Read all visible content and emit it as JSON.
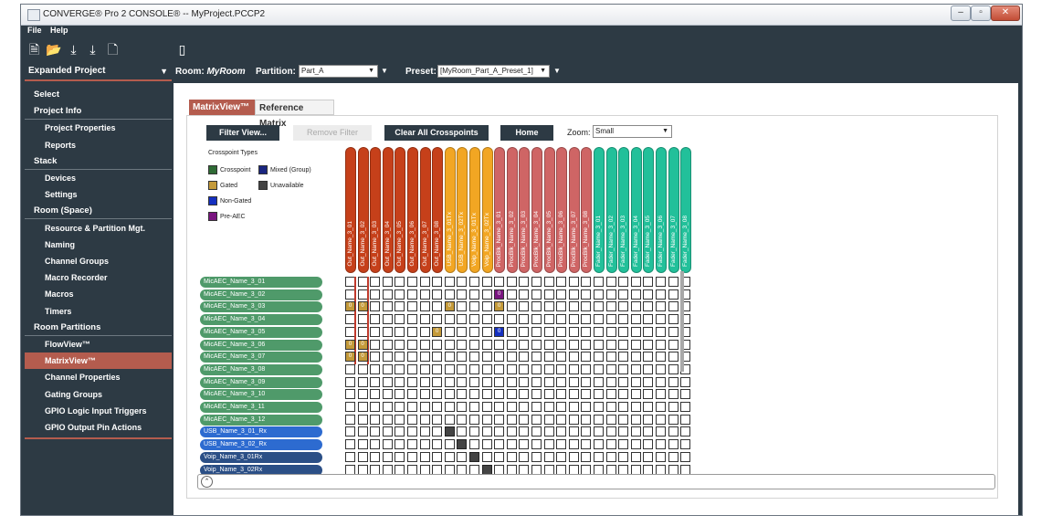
{
  "window": {
    "title": "CONVERGE® Pro 2 CONSOLE®  -- MyProject.PCCP2"
  },
  "menu": [
    "File",
    "Help"
  ],
  "expanded_project_label": "Expanded Project",
  "room": {
    "label": "Room:",
    "value": "MyRoom"
  },
  "partition": {
    "label": "Partition:",
    "value": "Part_A"
  },
  "preset": {
    "label": "Preset:",
    "value": "[MyRoom_Part_A_Preset_1]"
  },
  "sidebar": [
    {
      "label": "Select",
      "level": 1
    },
    {
      "label": "Project Info",
      "level": 1,
      "head": true
    },
    {
      "label": "Project Properties",
      "level": 2
    },
    {
      "label": "Reports",
      "level": 2
    },
    {
      "label": "Stack",
      "level": 1,
      "head": true
    },
    {
      "label": "Devices",
      "level": 2
    },
    {
      "label": "Settings",
      "level": 2
    },
    {
      "label": "Room (Space)",
      "level": 1,
      "head": true
    },
    {
      "label": "Resource & Partition Mgt.",
      "level": 2
    },
    {
      "label": "Naming",
      "level": 2
    },
    {
      "label": "Channel Groups",
      "level": 2
    },
    {
      "label": "Macro Recorder",
      "level": 2
    },
    {
      "label": "Macros",
      "level": 2
    },
    {
      "label": "Timers",
      "level": 2
    },
    {
      "label": "Room Partitions",
      "level": 1,
      "head": true
    },
    {
      "label": "FlowView™",
      "level": 2
    },
    {
      "label": "MatrixView™",
      "level": 2,
      "selected": true
    },
    {
      "label": "Channel Properties",
      "level": 2
    },
    {
      "label": "Gating Groups",
      "level": 2
    },
    {
      "label": "GPIO Logic Input Triggers",
      "level": 2
    },
    {
      "label": "GPIO Output Pin Actions",
      "level": 2
    }
  ],
  "tabs": [
    {
      "label": "MatrixView™"
    },
    {
      "label": "Reference Matrix"
    }
  ],
  "buttons": {
    "filter": "Filter View...",
    "remove_filter": "Remove Filter",
    "clear": "Clear All Crosspoints",
    "home": "Home"
  },
  "zoom": {
    "label": "Zoom:",
    "value": "Small"
  },
  "legend": {
    "title": "Crosspoint Types",
    "items": [
      {
        "label": "Crosspoint",
        "color": "#2f6b35"
      },
      {
        "label": "Mixed (Group)",
        "color": "#1a2680"
      },
      {
        "label": "Gated",
        "color": "#c49a3a"
      },
      {
        "label": "Unavailable",
        "color": "#444444"
      },
      {
        "label": "Non-Gated",
        "color": "#1530c0"
      },
      {
        "label": "Pre-AEC",
        "color": "#7a1580"
      }
    ]
  },
  "gate_glyph": "0",
  "columns": [
    {
      "label": "Out_Name_3_01",
      "color": "#c6401a"
    },
    {
      "label": "Out_Name_3_02",
      "color": "#c6401a"
    },
    {
      "label": "Out_Name_3_03",
      "color": "#c6401a"
    },
    {
      "label": "Out_Name_3_04",
      "color": "#c6401a"
    },
    {
      "label": "Out_Name_3_05",
      "color": "#c6401a"
    },
    {
      "label": "Out_Name_3_06",
      "color": "#c6401a"
    },
    {
      "label": "Out_Name_3_07",
      "color": "#c6401a"
    },
    {
      "label": "Out_Name_3_08",
      "color": "#c6401a"
    },
    {
      "label": "USB_Name_3_01Tx",
      "color": "#f2a623"
    },
    {
      "label": "USB_Name_3_02Tx",
      "color": "#f2a623"
    },
    {
      "label": "Voip_Name_3_01Tx",
      "color": "#f2a623"
    },
    {
      "label": "Voip_Name_3_02Tx",
      "color": "#f2a623"
    },
    {
      "label": "ProcBlk_Name_3_01",
      "color": "#cf6565"
    },
    {
      "label": "ProcBlk_Name_3_02",
      "color": "#cf6565"
    },
    {
      "label": "ProcBlk_Name_3_03",
      "color": "#cf6565"
    },
    {
      "label": "ProcBlk_Name_3_04",
      "color": "#cf6565"
    },
    {
      "label": "ProcBlk_Name_3_05",
      "color": "#cf6565"
    },
    {
      "label": "ProcBlk_Name_3_06",
      "color": "#cf6565"
    },
    {
      "label": "ProcBlk_Name_3_07",
      "color": "#cf6565"
    },
    {
      "label": "ProcBlk_Name_3_08",
      "color": "#cf6565"
    },
    {
      "label": "Fader_Name_3_01",
      "color": "#22c09a"
    },
    {
      "label": "Fader_Name_3_02",
      "color": "#22c09a"
    },
    {
      "label": "Fader_Name_3_03",
      "color": "#22c09a"
    },
    {
      "label": "Fader_Name_3_04",
      "color": "#22c09a"
    },
    {
      "label": "Fader_Name_3_05",
      "color": "#22c09a"
    },
    {
      "label": "Fader_Name_3_06",
      "color": "#22c09a"
    },
    {
      "label": "Fader_Name_3_07",
      "color": "#22c09a"
    },
    {
      "label": "Fader_Name_3_08",
      "color": "#22c09a"
    }
  ],
  "rows": [
    {
      "label": "MicAEC_Name_3_01",
      "color": "#4f9a6a"
    },
    {
      "label": "MicAEC_Name_3_02",
      "color": "#4f9a6a"
    },
    {
      "label": "MicAEC_Name_3_03",
      "color": "#4f9a6a"
    },
    {
      "label": "MicAEC_Name_3_04",
      "color": "#4f9a6a"
    },
    {
      "label": "MicAEC_Name_3_05",
      "color": "#4f9a6a"
    },
    {
      "label": "MicAEC_Name_3_06",
      "color": "#4f9a6a"
    },
    {
      "label": "MicAEC_Name_3_07",
      "color": "#4f9a6a"
    },
    {
      "label": "MicAEC_Name_3_08",
      "color": "#4f9a6a"
    },
    {
      "label": "MicAEC_Name_3_09",
      "color": "#4f9a6a"
    },
    {
      "label": "MicAEC_Name_3_10",
      "color": "#4f9a6a"
    },
    {
      "label": "MicAEC_Name_3_11",
      "color": "#4f9a6a"
    },
    {
      "label": "MicAEC_Name_3_12",
      "color": "#4f9a6a"
    },
    {
      "label": "USB_Name_3_01_Rx",
      "color": "#2d6bd0"
    },
    {
      "label": "USB_Name_3_02_Rx",
      "color": "#2d6bd0"
    },
    {
      "label": "Voip_Name_3_01Rx",
      "color": "#2b4f86"
    },
    {
      "label": "Voip_Name_3_02Rx",
      "color": "#2b4f86"
    }
  ],
  "crosspoints": [
    {
      "row": 2,
      "col": 0,
      "type": "gated"
    },
    {
      "row": 2,
      "col": 1,
      "type": "gated"
    },
    {
      "row": 2,
      "col": 8,
      "type": "gated"
    },
    {
      "row": 2,
      "col": 12,
      "type": "gated"
    },
    {
      "row": 1,
      "col": 12,
      "type": "pre-aec"
    },
    {
      "row": 4,
      "col": 7,
      "type": "gated"
    },
    {
      "row": 4,
      "col": 12,
      "type": "non-gated"
    },
    {
      "row": 5,
      "col": 0,
      "type": "gated"
    },
    {
      "row": 5,
      "col": 1,
      "type": "gated"
    },
    {
      "row": 6,
      "col": 0,
      "type": "gated"
    },
    {
      "row": 6,
      "col": 1,
      "type": "gated"
    },
    {
      "row": 12,
      "col": 8,
      "type": "unavailable"
    },
    {
      "row": 13,
      "col": 9,
      "type": "unavailable"
    },
    {
      "row": 14,
      "col": 10,
      "type": "unavailable"
    },
    {
      "row": 15,
      "col": 11,
      "type": "unavailable"
    }
  ]
}
